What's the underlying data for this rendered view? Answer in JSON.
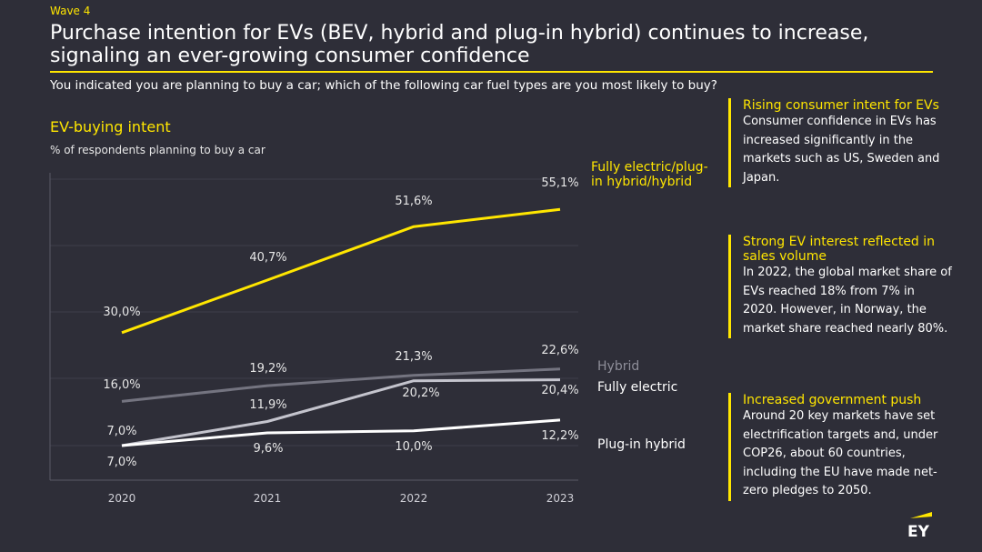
{
  "header": {
    "wave": "Wave 4",
    "title": "Purchase intention for EVs (BEV, hybrid and plug-in hybrid) continues to increase, signaling an ever-growing consumer confidence",
    "question": "You indicated you are planning to buy a car; which of the following car fuel types are you most likely to buy?"
  },
  "chart_data": {
    "type": "line",
    "title": "EV-buying intent",
    "subtitle": "% of respondents planning to buy a car",
    "x": [
      "2020",
      "2021",
      "2022",
      "2023"
    ],
    "ylim": [
      0,
      60
    ],
    "grid": true,
    "series": [
      {
        "name": "Fully electric/plug-in hybrid/hybrid",
        "values": [
          30.0,
          40.7,
          51.6,
          55.1
        ],
        "labels": [
          "30,0%",
          "40,7%",
          "51,6%",
          "55,1%"
        ],
        "color": "#ffe600"
      },
      {
        "name": "Hybrid",
        "values": [
          16.0,
          19.2,
          21.3,
          22.6
        ],
        "labels": [
          "16,0%",
          "19,2%",
          "21,3%",
          "22,6%"
        ],
        "color": "#747480"
      },
      {
        "name": "Fully electric",
        "values": [
          7.0,
          11.9,
          20.2,
          20.4
        ],
        "labels": [
          "7,0%",
          "11,9%",
          "20,2%",
          "20,4%"
        ],
        "color": "#c4c4cd"
      },
      {
        "name": "Plug-in hybrid",
        "values": [
          7.0,
          9.6,
          10.0,
          12.2
        ],
        "labels": [
          "7,0%",
          "9,6%",
          "10,0%",
          "12,2%"
        ],
        "color": "#ffffff"
      }
    ]
  },
  "panels": [
    {
      "title": "Rising consumer intent for EVs",
      "text": "Consumer confidence in EVs has increased significantly in the markets such as US, Sweden and Japan."
    },
    {
      "title": "Strong EV interest reflected in sales volume",
      "text": "In 2022, the global market share of EVs reached 18% from 7% in 2020. However, in Norway, the market share reached nearly 80%."
    },
    {
      "title": "Increased government push",
      "text": "Around 20 key markets have set electrification targets and, under COP26, about 60 countries, including the EU have made net-zero pledges to 2050."
    }
  ],
  "logo": {
    "text": "EY",
    "accent": "#ffe600"
  }
}
